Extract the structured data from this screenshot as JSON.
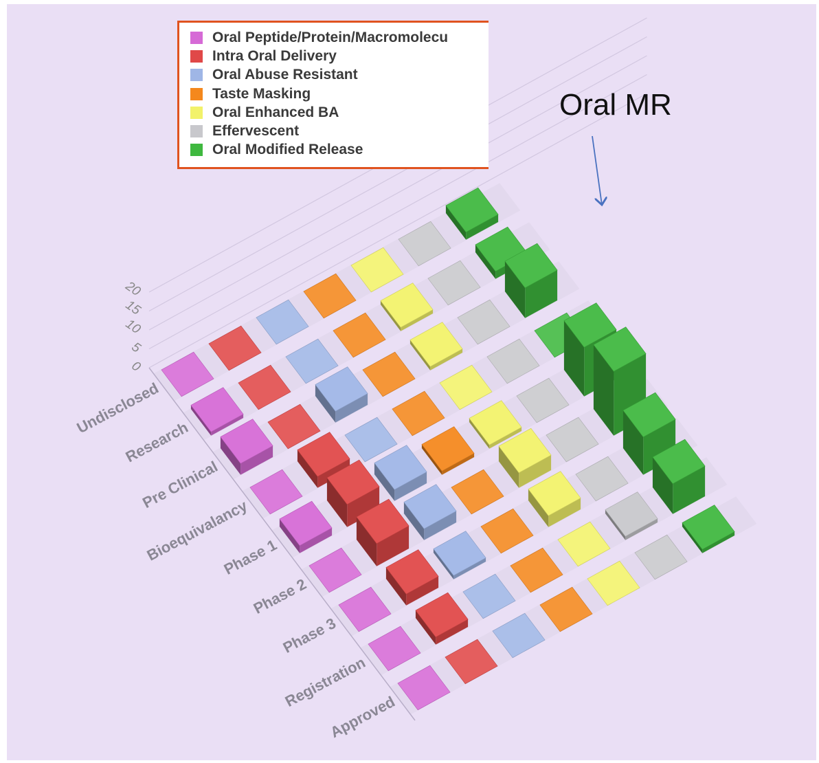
{
  "chart_data": {
    "type": "bar",
    "variant": "3d-bar",
    "title": "",
    "xlabel": "",
    "ylabel": "",
    "ylim": [
      0,
      20
    ],
    "yticks": [
      0,
      5,
      10,
      15,
      20
    ],
    "categories": [
      "Undisclosed",
      "Research",
      "Pre Clinical",
      "Bioequivalancy",
      "Phase 1",
      "Phase 2",
      "Phase 3",
      "Registration",
      "Approved"
    ],
    "grid": true,
    "legend_position": "top-left",
    "background": "#eadff5",
    "series": [
      {
        "name": "Oral Peptide/Protein/Macromolecu",
        "color": "#d66ad6",
        "values": [
          0,
          1,
          3,
          0,
          2,
          0,
          0,
          0,
          0
        ]
      },
      {
        "name": "Intra Oral Delivery",
        "color": "#e04848",
        "values": [
          0,
          0,
          0,
          3,
          6,
          6,
          3,
          2,
          0
        ]
      },
      {
        "name": "Oral Abuse Resistant",
        "color": "#9fb6e6",
        "values": [
          0,
          0,
          3,
          0,
          3,
          3,
          1,
          0,
          0
        ]
      },
      {
        "name": "Taste Masking",
        "color": "#f4881d",
        "values": [
          0,
          0,
          0,
          0,
          1,
          0,
          0,
          0,
          0
        ]
      },
      {
        "name": "Oral Enhanced BA",
        "color": "#f2f26a",
        "values": [
          0,
          1,
          1,
          0,
          1,
          4,
          3,
          0,
          0
        ]
      },
      {
        "name": "Effervescent",
        "color": "#c8c8cc",
        "values": [
          0,
          0,
          0,
          0,
          0,
          0,
          0,
          1,
          0
        ]
      },
      {
        "name": "Oral Modified Release",
        "color": "#3fb83f",
        "values": [
          2,
          2,
          8,
          0,
          13,
          17,
          10,
          8,
          1
        ]
      }
    ]
  },
  "annotation": {
    "text": "Oral MR"
  }
}
